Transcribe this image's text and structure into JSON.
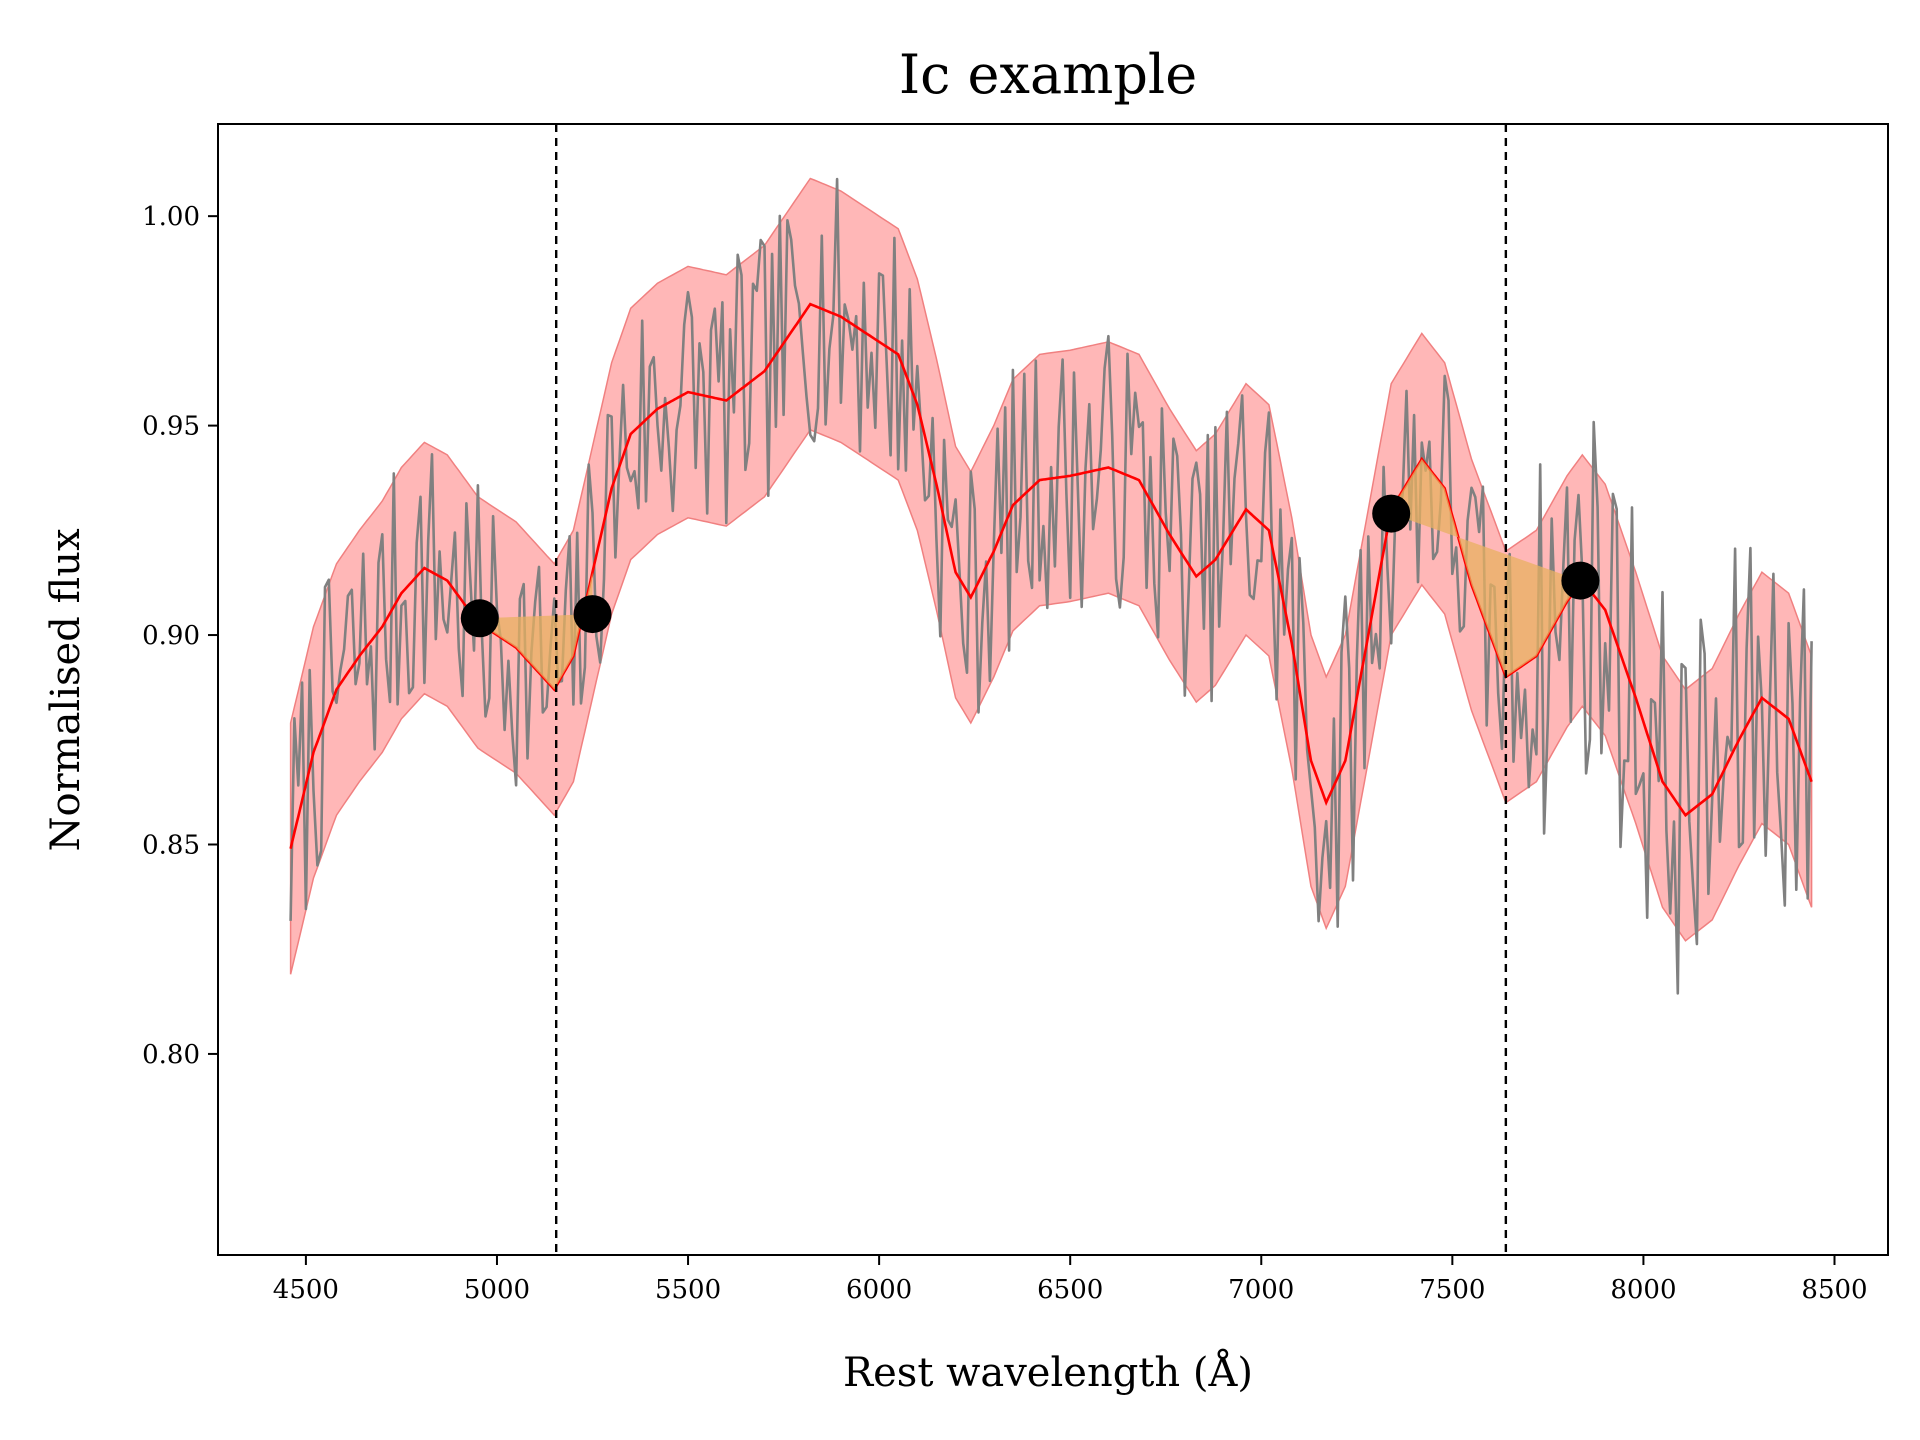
{
  "chart_data": {
    "type": "line",
    "title": "Ic example",
    "xlabel": "Rest wavelength (Å)",
    "ylabel": "Normalised flux",
    "xlim": [
      4270,
      8640
    ],
    "ylim": [
      0.752,
      1.022
    ],
    "xticks": [
      4500,
      5000,
      5500,
      6000,
      6500,
      7000,
      7500,
      8000,
      8500
    ],
    "yticks": [
      0.8,
      0.85,
      0.9,
      0.95,
      1.0
    ],
    "ytick_labels": [
      "0.80",
      "0.85",
      "0.90",
      "0.95",
      "1.00"
    ],
    "grid": false,
    "colors": {
      "observed": "#808080",
      "fit": "#ff0000",
      "band": "#ffb3b3",
      "band_edge": "#f08080",
      "feature_fill": "#e8b060",
      "marker": "#000000",
      "boundary": "#000000"
    },
    "series": [
      {
        "role": "observed-spectrum",
        "style": "noisy",
        "seed": 7,
        "step": 10,
        "noise_amp": 0.033
      },
      {
        "role": "smoothed-fit",
        "x": [
          4460,
          4520,
          4580,
          4640,
          4700,
          4750,
          4810,
          4870,
          4950,
          5000,
          5050,
          5100,
          5150,
          5200,
          5250,
          5300,
          5350,
          5420,
          5500,
          5600,
          5700,
          5820,
          5900,
          6000,
          6050,
          6100,
          6150,
          6200,
          6240,
          6300,
          6350,
          6420,
          6500,
          6600,
          6680,
          6760,
          6830,
          6880,
          6960,
          7020,
          7080,
          7130,
          7170,
          7220,
          7280,
          7340,
          7420,
          7480,
          7550,
          7640,
          7720,
          7800,
          7840,
          7900,
          7980,
          8050,
          8110,
          8180,
          8250,
          8310,
          8380,
          8440
        ],
        "y": [
          0.849,
          0.872,
          0.887,
          0.895,
          0.902,
          0.91,
          0.916,
          0.913,
          0.903,
          0.9,
          0.897,
          0.892,
          0.887,
          0.895,
          0.915,
          0.935,
          0.948,
          0.954,
          0.958,
          0.956,
          0.963,
          0.979,
          0.976,
          0.97,
          0.967,
          0.955,
          0.936,
          0.915,
          0.909,
          0.92,
          0.931,
          0.937,
          0.938,
          0.94,
          0.937,
          0.924,
          0.914,
          0.918,
          0.93,
          0.925,
          0.898,
          0.87,
          0.86,
          0.87,
          0.9,
          0.93,
          0.942,
          0.935,
          0.912,
          0.89,
          0.895,
          0.908,
          0.913,
          0.906,
          0.885,
          0.865,
          0.857,
          0.862,
          0.875,
          0.885,
          0.88,
          0.865
        ]
      }
    ],
    "uncertainty_band_halfwidth": 0.03,
    "boundaries_x": [
      5155,
      7640
    ],
    "markers": [
      {
        "x": 4955,
        "y": 0.904
      },
      {
        "x": 5250,
        "y": 0.905
      },
      {
        "x": 7340,
        "y": 0.929
      },
      {
        "x": 7835,
        "y": 0.913
      }
    ],
    "feature_regions": [
      {
        "x1": 4955,
        "y1": 0.904,
        "x2": 5250,
        "y2": 0.905
      },
      {
        "x1": 7340,
        "y1": 0.929,
        "x2": 7835,
        "y2": 0.913
      }
    ]
  }
}
